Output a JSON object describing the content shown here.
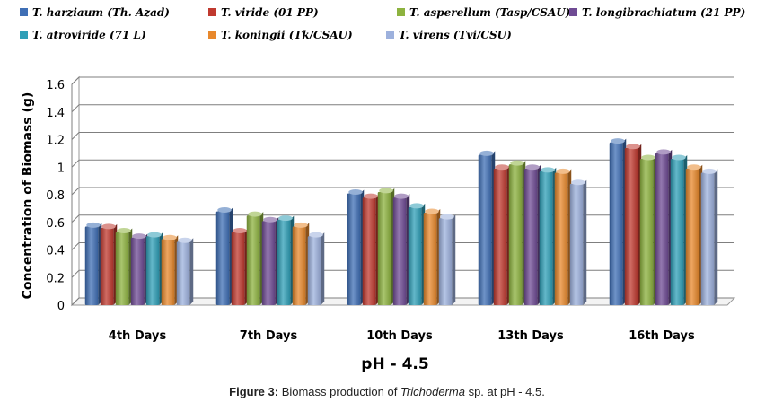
{
  "chart_data": {
    "type": "bar",
    "title": "",
    "ylabel": "Concentration of Biomass (g)",
    "xlabel": "pH  -  4.5",
    "ylim": [
      0,
      1.6
    ],
    "yticks": [
      0,
      0.2,
      0.4,
      0.6,
      0.8,
      1,
      1.2,
      1.4,
      1.6
    ],
    "ytick_labels": [
      "0",
      "0.2",
      "0.4",
      "0.6",
      "0.8",
      "1",
      "1.2",
      "1.4",
      "1.6"
    ],
    "grid": true,
    "legend_position": "top",
    "categories": [
      "4th Days",
      "7th Days",
      "10th Days",
      "13th Days",
      "16th Days"
    ],
    "series": [
      {
        "name": "T. harziaum (Th. Azad)",
        "color": "#3f6fb5",
        "values": [
          0.57,
          0.68,
          0.81,
          1.09,
          1.18
        ]
      },
      {
        "name": "T. viride (01 PP)",
        "color": "#c0392f",
        "values": [
          0.56,
          0.53,
          0.78,
          0.99,
          1.14
        ]
      },
      {
        "name": "T. asperellum (Tasp/CSAU)",
        "color": "#8db33f",
        "values": [
          0.53,
          0.65,
          0.82,
          1.02,
          1.06
        ]
      },
      {
        "name": "T. longibrachiatum (21 PP)",
        "color": "#6f4b94",
        "values": [
          0.49,
          0.61,
          0.78,
          0.99,
          1.1
        ]
      },
      {
        "name": "T. atroviride (71 L)",
        "color": "#2f9fb7",
        "values": [
          0.5,
          0.62,
          0.71,
          0.97,
          1.06
        ]
      },
      {
        "name": "T. koningii (Tk/CSAU)",
        "color": "#e8882c",
        "values": [
          0.48,
          0.57,
          0.67,
          0.96,
          0.99
        ]
      },
      {
        "name": "T. virens (Tvi/CSU)",
        "color": "#9db1dd",
        "values": [
          0.46,
          0.5,
          0.63,
          0.88,
          0.96
        ]
      }
    ]
  },
  "caption": {
    "label": "Figure 3:",
    "text_before": " Biomass production of ",
    "species": "Trichoderma",
    "text_after": " sp. at pH - 4.5."
  }
}
